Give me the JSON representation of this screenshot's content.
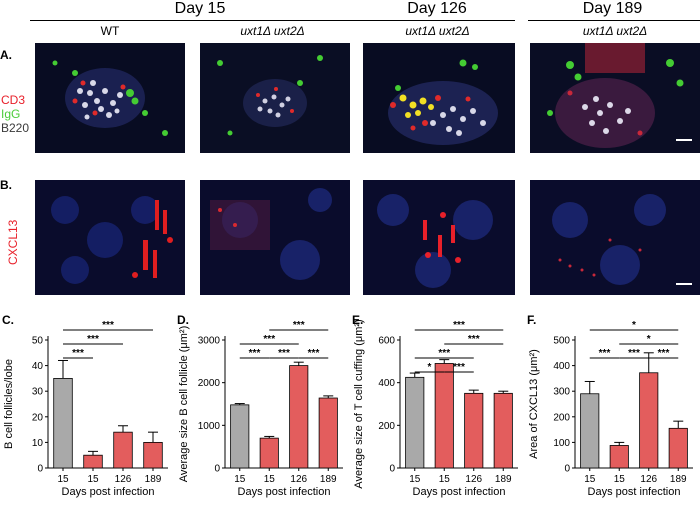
{
  "headers": {
    "day15": "Day 15",
    "day126": "Day 126",
    "day189": "Day 189"
  },
  "columns": [
    "WT",
    "uxt1Δ uxt2Δ",
    "uxt1Δ uxt2Δ",
    "uxt1Δ uxt2Δ"
  ],
  "row_a": {
    "label": "A.",
    "channels": [
      {
        "name": "CD3",
        "color": "#e8202a"
      },
      {
        "name": "IgG",
        "color": "#4ccc3a"
      },
      {
        "name": "B220",
        "color": "#e0e0ea"
      }
    ]
  },
  "row_b": {
    "label": "B.",
    "channels": [
      {
        "name": "CXCL13",
        "color": "#e8202a"
      }
    ]
  },
  "colors": {
    "wt": "#a9a9a9",
    "mutant": "#e35d5d"
  },
  "chart_data": [
    {
      "panel": "C.",
      "type": "bar",
      "categories": [
        "15",
        "15",
        "126",
        "189"
      ],
      "values": [
        35,
        5,
        14,
        10
      ],
      "errors": [
        7,
        1.5,
        2.5,
        4
      ],
      "ylabel": "B cell follicles/lobe",
      "xlabel": "Days post infection",
      "ylim": [
        0,
        50
      ],
      "yticks": [
        "0",
        "10",
        "20",
        "30",
        "40",
        "50"
      ],
      "yticks_num": [
        0,
        10,
        20,
        30,
        40,
        50
      ],
      "significance": [
        {
          "from": 0,
          "to": 3,
          "label": "***"
        },
        {
          "from": 0,
          "to": 2,
          "label": "***"
        },
        {
          "from": 0,
          "to": 1,
          "label": "***"
        }
      ]
    },
    {
      "panel": "D.",
      "type": "bar",
      "categories": [
        "15",
        "15",
        "126",
        "189"
      ],
      "values": [
        1480,
        700,
        2400,
        1640
      ],
      "errors": [
        30,
        40,
        80,
        50
      ],
      "ylabel": "Average size B cell follicle (μm²)",
      "xlabel": "Days post infection",
      "ylim": [
        0,
        3000
      ],
      "yticks": [
        "0",
        "1000",
        "2000",
        "3000"
      ],
      "yticks_num": [
        0,
        1000,
        2000,
        3000
      ],
      "significance": [
        {
          "from": 1,
          "to": 3,
          "label": "***"
        },
        {
          "from": 0,
          "to": 2,
          "label": "***"
        },
        {
          "from": 0,
          "to": 1,
          "label": "***"
        },
        {
          "from": 1,
          "to": 2,
          "label": "***"
        },
        {
          "from": 2,
          "to": 3,
          "label": "***"
        }
      ]
    },
    {
      "panel": "E.",
      "type": "bar",
      "categories": [
        "15",
        "15",
        "126",
        "189"
      ],
      "values": [
        425,
        490,
        350,
        350
      ],
      "errors": [
        20,
        18,
        15,
        10
      ],
      "ylabel": "Average size of T cell cuffing (μm²)",
      "xlabel": "Days post infection",
      "ylim": [
        0,
        600
      ],
      "yticks": [
        "0",
        "200",
        "400",
        "600"
      ],
      "yticks_num": [
        0,
        200,
        400,
        600
      ],
      "significance": [
        {
          "from": 0,
          "to": 3,
          "label": "***"
        },
        {
          "from": 1,
          "to": 3,
          "label": "***"
        },
        {
          "from": 0,
          "to": 2,
          "label": "***"
        },
        {
          "from": 0,
          "to": 1,
          "label": "*"
        },
        {
          "from": 1,
          "to": 2,
          "label": "***"
        }
      ]
    },
    {
      "panel": "F.",
      "type": "bar",
      "categories": [
        "15",
        "15",
        "126",
        "189"
      ],
      "values": [
        290,
        88,
        372,
        155
      ],
      "errors": [
        48,
        12,
        78,
        28
      ],
      "ylabel": "Area of CXCL13 (μm²)",
      "xlabel": "Days post infection",
      "ylim": [
        0,
        500
      ],
      "yticks": [
        "0",
        "100",
        "200",
        "300",
        "400",
        "500"
      ],
      "yticks_num": [
        0,
        100,
        200,
        300,
        400,
        500
      ],
      "significance": [
        {
          "from": 0,
          "to": 3,
          "label": "*"
        },
        {
          "from": 1,
          "to": 3,
          "label": "*"
        },
        {
          "from": 0,
          "to": 1,
          "label": "***"
        },
        {
          "from": 1,
          "to": 2,
          "label": "***"
        },
        {
          "from": 2,
          "to": 3,
          "label": "***"
        }
      ]
    }
  ]
}
